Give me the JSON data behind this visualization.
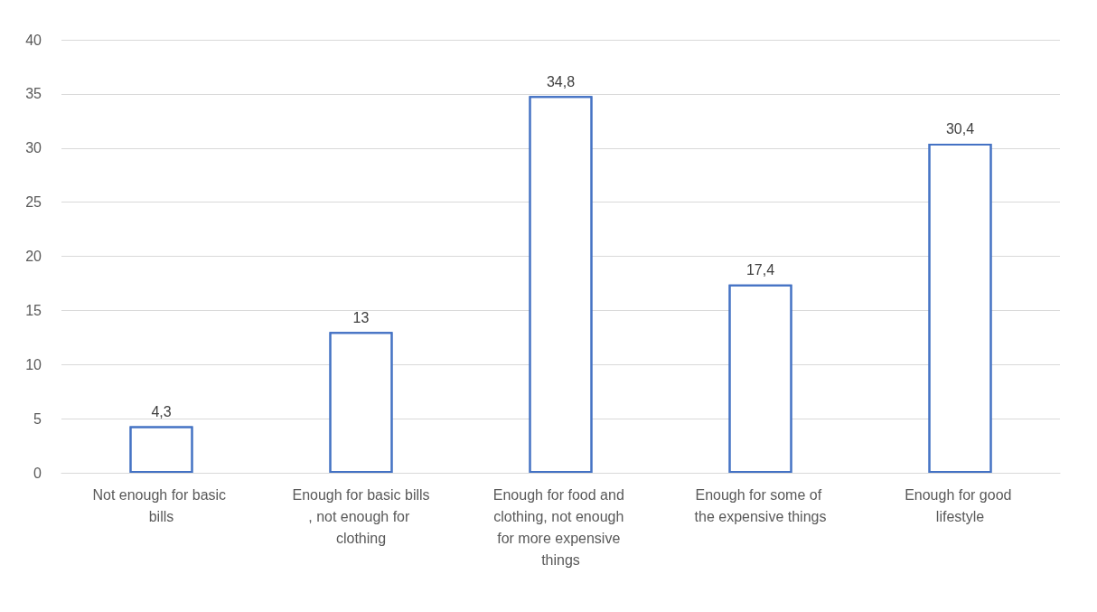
{
  "chart_data": {
    "type": "bar",
    "categories": [
      "Not enough for basic bills",
      "Enough for basic bills, not enough for clothing",
      "Enough for food and clothing, not enough for more expensive things",
      "Enough for some of the expensive things",
      "Enough for good lifestyle"
    ],
    "values": [
      4.3,
      13,
      34.8,
      17.4,
      30.4
    ],
    "value_labels": [
      "4,3",
      "13",
      "34,8",
      "17,4",
      "30,4"
    ],
    "color": "#4472c4",
    "ylim": [
      0,
      40
    ],
    "yticks": [
      0,
      5,
      10,
      15,
      20,
      25,
      30,
      35,
      40
    ],
    "grid": "y"
  }
}
